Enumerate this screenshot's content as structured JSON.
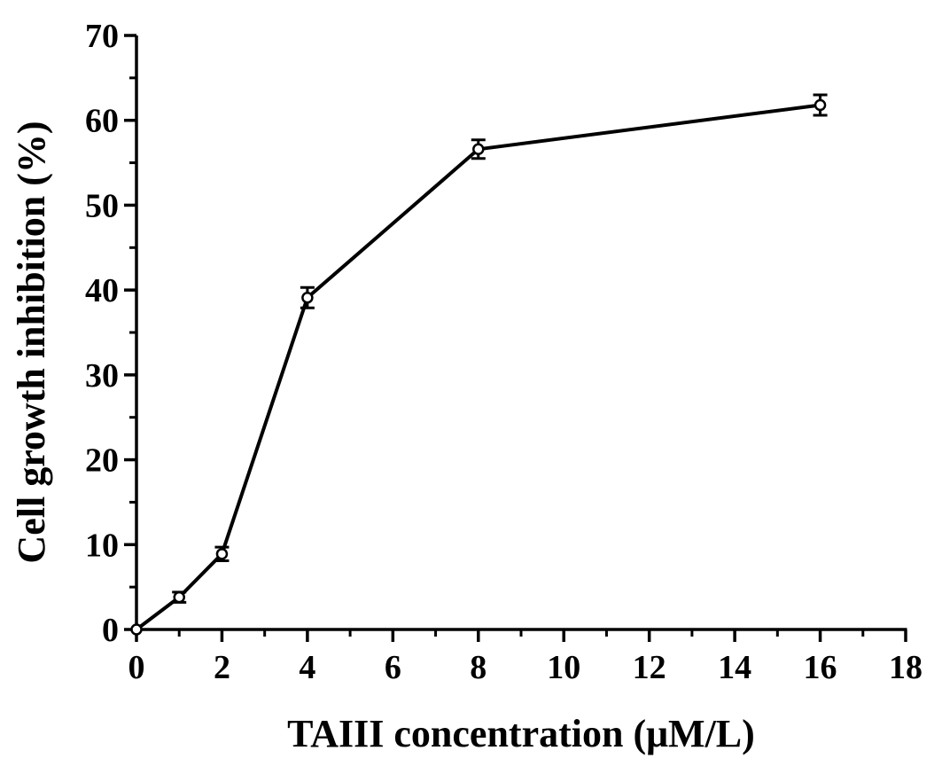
{
  "chart_data": {
    "type": "line",
    "title": "",
    "xlabel": "TAIII concentration (μM/L)",
    "ylabel": "Cell growth inhibition (%)",
    "xlim": [
      0,
      18
    ],
    "ylim": [
      0,
      70
    ],
    "x_ticks": [
      0,
      2,
      4,
      6,
      8,
      10,
      12,
      14,
      16,
      18
    ],
    "y_ticks": [
      0,
      10,
      20,
      30,
      40,
      50,
      60,
      70
    ],
    "grid": false,
    "legend": "none",
    "series": [
      {
        "x": [
          0,
          1,
          2,
          4,
          8,
          16
        ],
        "y": [
          0,
          3.8,
          8.9,
          39.1,
          56.6,
          61.8
        ],
        "error": [
          0,
          0.6,
          0.8,
          1.2,
          1.1,
          1.2
        ],
        "color": "#000000",
        "marker": "open-circle"
      }
    ]
  }
}
